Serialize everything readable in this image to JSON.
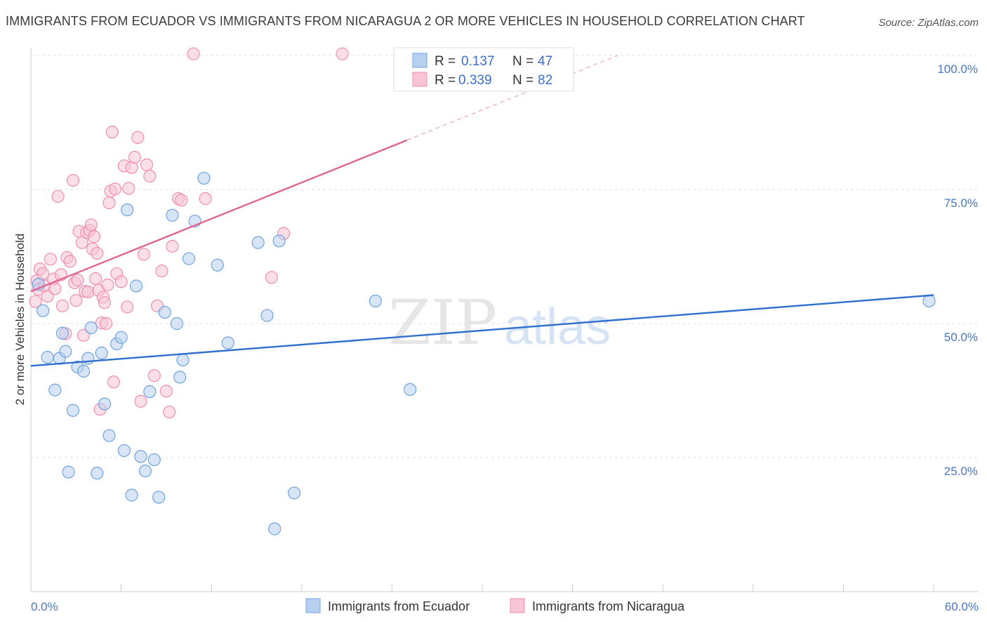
{
  "title": "IMMIGRANTS FROM ECUADOR VS IMMIGRANTS FROM NICARAGUA 2 OR MORE VEHICLES IN HOUSEHOLD CORRELATION CHART",
  "source": "Source: ZipAtlas.com",
  "watermark": {
    "zip": "ZIP",
    "atlas": "atlas"
  },
  "legend_top": {
    "r_label": "R =",
    "n_label": "N =",
    "ecuador": {
      "r": "0.137",
      "n": "47"
    },
    "nicaragua": {
      "r": "0.339",
      "n": "82"
    }
  },
  "chart_data": {
    "type": "scatter",
    "title": "IMMIGRANTS FROM ECUADOR VS IMMIGRANTS FROM NICARAGUA 2 OR MORE VEHICLES IN HOUSEHOLD CORRELATION CHART",
    "xlabel": "",
    "ylabel": "2 or more Vehicles in Household",
    "xlim": [
      0,
      60
    ],
    "ylim": [
      0,
      105
    ],
    "x_tick_labels": {
      "left": "0.0%",
      "right": "60.0%"
    },
    "y_tick_labels": [
      {
        "value": 100,
        "label": "100.0%"
      },
      {
        "value": 75,
        "label": "75.0%"
      },
      {
        "value": 50,
        "label": "50.0%"
      },
      {
        "value": 25,
        "label": "25.0%"
      }
    ],
    "series": [
      {
        "name": "Immigrants from Ecuador",
        "color": "#6fa3e0",
        "fill": "#b7d0f0",
        "trend": {
          "x": [
            0,
            60
          ],
          "y": [
            42.1,
            55.3
          ],
          "color": "#2f6fd0"
        },
        "points": [
          [
            0.5,
            57.3
          ],
          [
            0.8,
            52.4
          ],
          [
            1.1,
            43.7
          ],
          [
            1.6,
            37.6
          ],
          [
            1.9,
            43.5
          ],
          [
            2.1,
            48.2
          ],
          [
            2.3,
            44.8
          ],
          [
            2.5,
            22.3
          ],
          [
            2.8,
            33.8
          ],
          [
            3.1,
            41.9
          ],
          [
            3.5,
            41.1
          ],
          [
            3.8,
            43.5
          ],
          [
            4.0,
            49.2
          ],
          [
            4.4,
            22.1
          ],
          [
            4.7,
            44.5
          ],
          [
            4.9,
            35.0
          ],
          [
            5.2,
            29.1
          ],
          [
            5.7,
            46.2
          ],
          [
            6.0,
            47.4
          ],
          [
            6.2,
            26.3
          ],
          [
            6.4,
            71.2
          ],
          [
            6.7,
            18.0
          ],
          [
            7.0,
            57.0
          ],
          [
            7.3,
            25.2
          ],
          [
            7.6,
            22.5
          ],
          [
            7.9,
            37.3
          ],
          [
            8.2,
            24.6
          ],
          [
            8.5,
            17.6
          ],
          [
            8.9,
            52.1
          ],
          [
            9.4,
            70.2
          ],
          [
            9.7,
            50.0
          ],
          [
            9.9,
            40.0
          ],
          [
            10.1,
            43.2
          ],
          [
            10.5,
            62.1
          ],
          [
            10.9,
            69.1
          ],
          [
            11.5,
            77.1
          ],
          [
            12.4,
            60.9
          ],
          [
            13.1,
            46.4
          ],
          [
            15.1,
            65.1
          ],
          [
            15.7,
            51.5
          ],
          [
            16.2,
            11.7
          ],
          [
            16.5,
            65.4
          ],
          [
            17.5,
            18.4
          ],
          [
            22.9,
            54.2
          ],
          [
            25.2,
            37.7
          ],
          [
            59.7,
            54.2
          ]
        ]
      },
      {
        "name": "Immigrants from Nicaragua",
        "color": "#ee8fb0",
        "fill": "#f8c4d6",
        "trend": {
          "x": [
            0,
            25
          ],
          "y": [
            56.0,
            84.2
          ],
          "color": "#e06591",
          "dashed_to": {
            "x": 39,
            "y": 100
          }
        },
        "points": [
          [
            0.3,
            54.1
          ],
          [
            0.4,
            58.0
          ],
          [
            0.5,
            56.4
          ],
          [
            0.6,
            60.2
          ],
          [
            0.8,
            59.3
          ],
          [
            0.9,
            57.0
          ],
          [
            1.1,
            55.1
          ],
          [
            1.3,
            62.0
          ],
          [
            1.5,
            58.3
          ],
          [
            1.6,
            56.5
          ],
          [
            1.8,
            73.7
          ],
          [
            2.0,
            59.1
          ],
          [
            2.1,
            53.3
          ],
          [
            2.3,
            48.1
          ],
          [
            2.4,
            62.3
          ],
          [
            2.6,
            61.6
          ],
          [
            2.8,
            76.7
          ],
          [
            2.9,
            57.6
          ],
          [
            3.0,
            54.3
          ],
          [
            3.1,
            58.1
          ],
          [
            3.2,
            67.2
          ],
          [
            3.4,
            65.1
          ],
          [
            3.5,
            47.8
          ],
          [
            3.6,
            56.0
          ],
          [
            3.7,
            67.0
          ],
          [
            3.8,
            55.9
          ],
          [
            3.9,
            67.4
          ],
          [
            4.0,
            68.4
          ],
          [
            4.1,
            63.9
          ],
          [
            4.2,
            66.2
          ],
          [
            4.3,
            58.4
          ],
          [
            4.4,
            63.1
          ],
          [
            4.5,
            56.2
          ],
          [
            4.6,
            34.0
          ],
          [
            4.7,
            50.1
          ],
          [
            4.8,
            54.9
          ],
          [
            4.9,
            53.9
          ],
          [
            5.0,
            50.0
          ],
          [
            5.1,
            57.2
          ],
          [
            5.2,
            72.5
          ],
          [
            5.3,
            74.7
          ],
          [
            5.4,
            85.7
          ],
          [
            5.5,
            39.1
          ],
          [
            5.6,
            75.1
          ],
          [
            5.7,
            59.3
          ],
          [
            6.0,
            57.8
          ],
          [
            6.2,
            79.4
          ],
          [
            6.4,
            53.1
          ],
          [
            6.5,
            75.2
          ],
          [
            6.7,
            79.1
          ],
          [
            6.9,
            81.0
          ],
          [
            7.1,
            84.7
          ],
          [
            7.3,
            35.5
          ],
          [
            7.5,
            62.9
          ],
          [
            7.7,
            79.6
          ],
          [
            7.9,
            77.5
          ],
          [
            8.2,
            40.3
          ],
          [
            8.4,
            53.3
          ],
          [
            8.7,
            59.8
          ],
          [
            9.0,
            37.4
          ],
          [
            9.2,
            33.5
          ],
          [
            9.4,
            64.4
          ],
          [
            9.8,
            73.3
          ],
          [
            10.0,
            73.0
          ],
          [
            11.6,
            73.3
          ],
          [
            16.0,
            58.6
          ],
          [
            16.8,
            66.8
          ],
          [
            10.8,
            100.3
          ],
          [
            20.7,
            100.3
          ]
        ]
      }
    ]
  },
  "legend_bottom": {
    "ecuador": "Immigrants from Ecuador",
    "nicaragua": "Immigrants from Nicaragua"
  }
}
